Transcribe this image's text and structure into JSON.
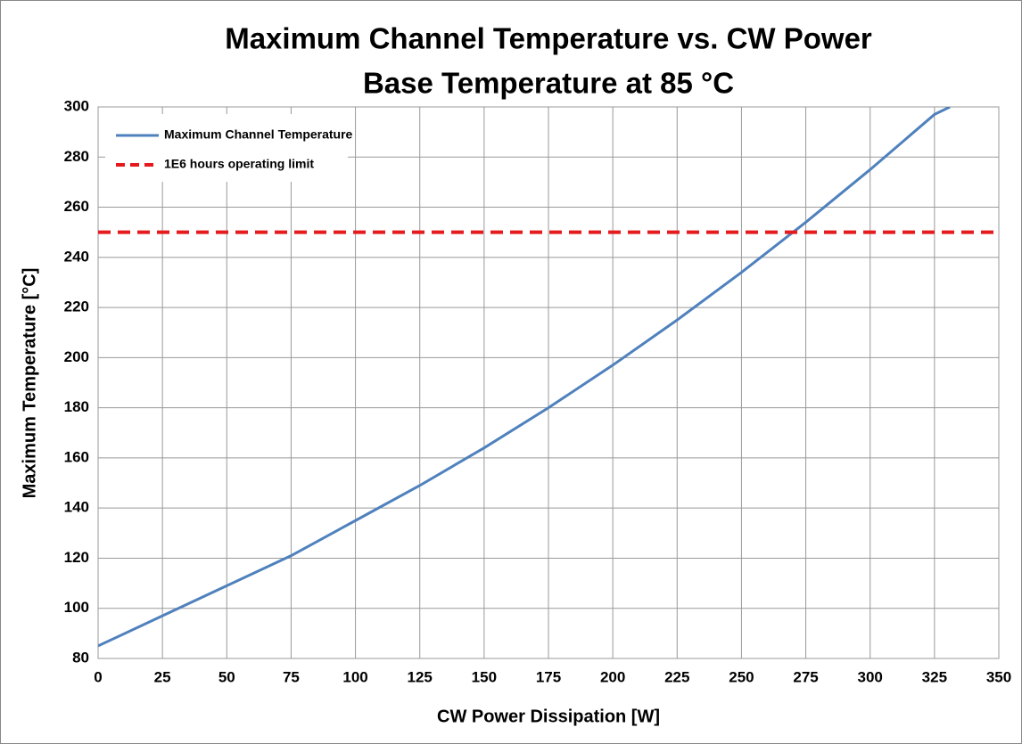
{
  "chart_data": {
    "type": "line",
    "title": "Maximum Channel Temperature vs. CW Power",
    "subtitle": "Base Temperature at 85 °C",
    "x_label": "CW Power Dissipation [W]",
    "y_label": "Maximum Temperature [°C]",
    "xlim": [
      0,
      350
    ],
    "xticks": [
      0,
      25,
      50,
      75,
      100,
      125,
      150,
      175,
      200,
      225,
      250,
      275,
      300,
      325,
      350
    ],
    "ylim": [
      80,
      300
    ],
    "yticks": [
      80,
      100,
      120,
      140,
      160,
      180,
      200,
      220,
      240,
      260,
      280,
      300
    ],
    "grid": true,
    "legend": "upper-left",
    "series": [
      {
        "name": "Maximum Channel Temperature",
        "color": "#4f81bd",
        "line_style": "solid",
        "x": [
          0,
          25,
          50,
          75,
          100,
          125,
          150,
          175,
          200,
          225,
          250,
          275,
          300,
          325,
          331
        ],
        "values": [
          85,
          97,
          109,
          121,
          135,
          149,
          164,
          180,
          197,
          215,
          234,
          254,
          275,
          297,
          300
        ]
      },
      {
        "name": "1E6 hours operating limit",
        "color": "#e41a1c",
        "line_style": "dashed",
        "x": [
          0,
          350
        ],
        "values": [
          250,
          250
        ]
      }
    ]
  }
}
